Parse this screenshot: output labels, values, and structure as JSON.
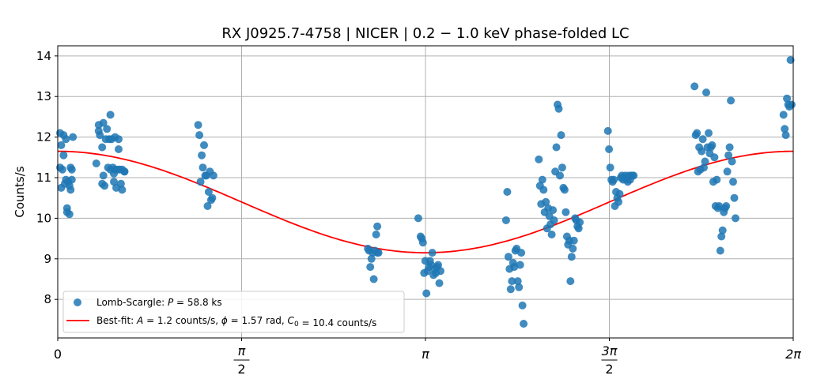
{
  "chart_data": {
    "type": "scatter",
    "title": "RX J0925.7-4758 | NICER | 0.2 − 1.0 keV phase-folded LC",
    "xlabel": "",
    "ylabel": "Counts/s",
    "xlim": [
      0,
      6.2832
    ],
    "ylim": [
      7.05,
      14.25
    ],
    "grid": true,
    "legend_position": "lower-left",
    "xticks": [
      {
        "value": 0,
        "label": "0"
      },
      {
        "value": 1.5708,
        "label": "π/2"
      },
      {
        "value": 3.1416,
        "label": "π"
      },
      {
        "value": 4.7124,
        "label": "3π/2"
      },
      {
        "value": 6.2832,
        "label": "2π"
      }
    ],
    "yticks": [
      8,
      9,
      10,
      11,
      12,
      13,
      14
    ],
    "colors": {
      "scatter": "#1f77b4",
      "fit": "#ff0000",
      "grid": "#b0b0b0"
    },
    "series": [
      {
        "name": "Lomb-Scargle: P = 58.8 ks",
        "legend_math": "P",
        "legend_prefix": "Lomb-Scargle: ",
        "legend_suffix": " = 58.8 ks",
        "kind": "scatter",
        "x": [
          0.02,
          0.02,
          0.03,
          0.03,
          0.04,
          0.05,
          0.05,
          0.06,
          0.07,
          0.07,
          0.08,
          0.08,
          0.09,
          0.1,
          0.1,
          0.11,
          0.11,
          0.12,
          0.12,
          0.13,
          0.33,
          0.35,
          0.35,
          0.36,
          0.38,
          0.38,
          0.39,
          0.39,
          0.4,
          0.41,
          0.42,
          0.43,
          0.44,
          0.45,
          0.45,
          0.46,
          0.47,
          0.48,
          0.48,
          0.49,
          0.49,
          0.5,
          0.51,
          0.52,
          0.52,
          0.53,
          0.54,
          0.55,
          0.55,
          0.57,
          0.57,
          1.2,
          1.21,
          1.22,
          1.23,
          1.24,
          1.25,
          1.26,
          1.27,
          1.28,
          1.29,
          1.3,
          1.31,
          1.32,
          1.33,
          2.65,
          2.66,
          2.67,
          2.68,
          2.69,
          2.7,
          2.71,
          2.72,
          2.73,
          2.73,
          2.74,
          3.08,
          3.1,
          3.11,
          3.12,
          3.13,
          3.14,
          3.15,
          3.16,
          3.17,
          3.18,
          3.19,
          3.2,
          3.21,
          3.22,
          3.23,
          3.24,
          3.25,
          3.26,
          3.27,
          3.83,
          3.84,
          3.85,
          3.86,
          3.87,
          3.88,
          3.89,
          3.9,
          3.91,
          3.92,
          3.93,
          3.94,
          3.95,
          3.96,
          3.97,
          3.98,
          4.11,
          4.12,
          4.13,
          4.14,
          4.15,
          4.16,
          4.17,
          4.18,
          4.19,
          4.2,
          4.21,
          4.22,
          4.23,
          4.24,
          4.25,
          4.26,
          4.27,
          4.28,
          4.29,
          4.3,
          4.31,
          4.32,
          4.33,
          4.34,
          4.35,
          4.36,
          4.37,
          4.38,
          4.39,
          4.4,
          4.41,
          4.42,
          4.43,
          4.44,
          4.45,
          4.46,
          4.7,
          4.71,
          4.72,
          4.73,
          4.74,
          4.75,
          4.76,
          4.77,
          4.78,
          4.79,
          4.8,
          4.81,
          4.82,
          4.83,
          4.84,
          4.85,
          4.86,
          4.87,
          4.88,
          4.89,
          4.9,
          4.91,
          4.92,
          5.44,
          5.45,
          5.46,
          5.47,
          5.48,
          5.49,
          5.5,
          5.51,
          5.52,
          5.53,
          5.54,
          5.55,
          5.56,
          5.57,
          5.58,
          5.59,
          5.6,
          5.61,
          5.62,
          5.63,
          5.64,
          5.65,
          5.66,
          5.67,
          5.68,
          5.69,
          5.7,
          5.71,
          5.72,
          5.73,
          5.74,
          5.75,
          5.76,
          5.77,
          5.78,
          5.79,
          6.2,
          6.21,
          6.22,
          6.23,
          6.24,
          6.25,
          6.26,
          6.27
        ],
        "y": [
          11.25,
          12.1,
          11.8,
          10.75,
          11.2,
          11.55,
          12.05,
          10.85,
          11.95,
          10.95,
          10.15,
          10.25,
          10.9,
          10.8,
          10.1,
          11.25,
          10.7,
          10.95,
          11.2,
          12.0,
          11.35,
          12.15,
          12.3,
          12.05,
          11.75,
          10.85,
          11.05,
          12.35,
          10.8,
          11.95,
          12.2,
          11.25,
          11.95,
          12.55,
          11.2,
          11.95,
          11.25,
          10.9,
          11.1,
          11.2,
          12.0,
          10.75,
          11.2,
          11.95,
          11.7,
          11.2,
          10.85,
          10.7,
          11.2,
          11.15,
          11.15,
          12.3,
          12.05,
          10.9,
          11.55,
          11.25,
          11.8,
          11.05,
          11.05,
          10.3,
          10.65,
          11.15,
          10.45,
          10.5,
          11.05,
          9.25,
          9.2,
          8.8,
          9.0,
          9.15,
          8.5,
          9.2,
          9.6,
          9.8,
          9.15,
          9.15,
          10.0,
          9.55,
          9.5,
          9.4,
          8.65,
          8.95,
          8.15,
          8.7,
          8.8,
          8.95,
          8.85,
          9.15,
          8.6,
          8.75,
          8.65,
          8.8,
          8.85,
          8.4,
          8.7,
          9.95,
          10.65,
          9.05,
          8.75,
          8.25,
          8.45,
          8.9,
          8.8,
          9.2,
          9.25,
          8.45,
          8.3,
          8.85,
          9.15,
          7.85,
          7.4,
          11.45,
          10.8,
          10.35,
          10.95,
          10.7,
          10.15,
          10.4,
          9.75,
          10.25,
          10.05,
          9.85,
          9.6,
          10.2,
          9.95,
          11.15,
          11.75,
          12.8,
          12.7,
          11.05,
          12.05,
          11.25,
          10.75,
          10.7,
          10.15,
          9.55,
          9.35,
          9.45,
          8.45,
          9.05,
          9.25,
          9.45,
          10.0,
          9.95,
          9.8,
          9.75,
          9.9,
          12.15,
          11.7,
          11.25,
          10.95,
          10.9,
          10.95,
          10.3,
          10.65,
          10.5,
          10.4,
          10.6,
          11.0,
          11.05,
          10.95,
          11.0,
          11.05,
          10.95,
          10.9,
          11.05,
          10.95,
          11.05,
          11.05,
          11.05,
          13.25,
          12.05,
          12.1,
          11.15,
          11.75,
          11.2,
          11.65,
          11.95,
          11.25,
          11.4,
          13.1,
          11.75,
          12.1,
          11.6,
          11.75,
          11.8,
          10.9,
          11.5,
          10.3,
          10.95,
          10.25,
          10.3,
          9.2,
          9.55,
          9.7,
          10.15,
          10.25,
          10.3,
          11.15,
          11.55,
          11.75,
          12.9,
          11.4,
          10.9,
          10.5,
          10.0,
          12.55,
          12.2,
          12.05,
          12.95,
          12.8,
          12.75,
          13.9,
          12.8
        ],
        "color": "#1f77b4"
      },
      {
        "name": "Best-fit: A = 1.2 counts/s, ϕ = 1.57 rad, C0 = 10.4 counts/s",
        "legend_prefix": "Best-fit: ",
        "legend_parts": [
          {
            "t": "A",
            "math": true
          },
          {
            "t": " = 1.2 counts/s, ",
            "math": false
          },
          {
            "t": "ϕ",
            "math": true
          },
          {
            "t": " = 1.57 rad, ",
            "math": false
          },
          {
            "t": "C",
            "math": true,
            "sub": "0"
          },
          {
            "t": " = 10.4 counts/s",
            "math": false
          }
        ],
        "kind": "line",
        "model": "C0 + A*sin(x + phi)",
        "A": 1.25,
        "phi": 1.5708,
        "C0": 10.4,
        "color": "#ff0000"
      }
    ]
  }
}
